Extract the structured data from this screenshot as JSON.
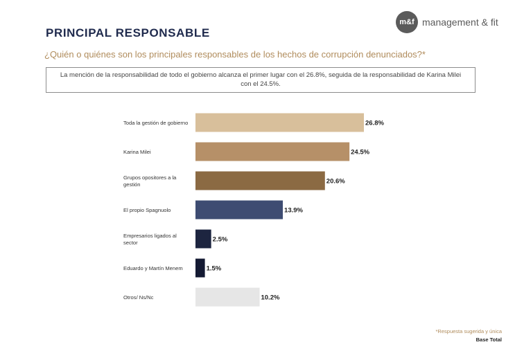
{
  "header": {
    "title": "PRINCIPAL RESPONSABLE",
    "logo_mark": "m&f",
    "logo_text": "management & fit"
  },
  "question": "¿Quién o quiénes son los principales responsables de los hechos de corrupción denunciados?*",
  "note_line1": "La mención de la responsabilidad de todo el gobierno alcanza el primer lugar con el 26.8%, seguida de la responsabilidad de Karina Milei",
  "note_line2": "con el 24.5%.",
  "footer": {
    "note": "*Respuesta sugerida y única",
    "base": "Base Total"
  },
  "chart_data": {
    "type": "bar",
    "orientation": "horizontal",
    "categories": [
      [
        "Toda la gestión de gobierno"
      ],
      [
        "Karina Milei"
      ],
      [
        "Grupos opositores a la",
        "gestión"
      ],
      [
        "El propio Spagnuolo"
      ],
      [
        "Empresarios ligados al",
        "sector"
      ],
      [
        "Eduardo y Martín Menem"
      ],
      [
        "Otros/ Ns/Nc"
      ]
    ],
    "values": [
      26.8,
      24.5,
      20.6,
      13.9,
      2.5,
      1.5,
      10.2
    ],
    "value_labels": [
      "26.8%",
      "24.5%",
      "20.6%",
      "13.9%",
      "2.5%",
      "1.5%",
      "10.2%"
    ],
    "colors": [
      "#d8bf9b",
      "#b69068",
      "#8b6a43",
      "#3e4c72",
      "#1d2540",
      "#141a33",
      "#e6e6e6"
    ],
    "xlim": [
      0,
      26.8
    ],
    "grid": false,
    "title": "",
    "xlabel": "",
    "ylabel": ""
  }
}
